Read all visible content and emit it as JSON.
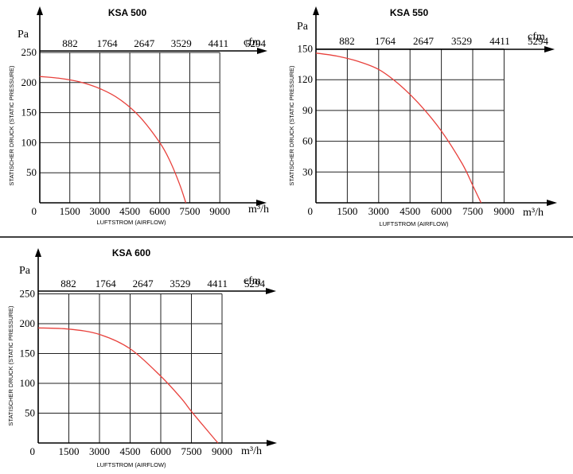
{
  "chart_data": [
    {
      "type": "line",
      "title": "KSA 500",
      "ylabel": "STATISCHER DRUCK (STATIC PRESSURE)",
      "xlabel": "LUFTSTROM (AIRFLOW)",
      "y_unit": "Pa",
      "x_unit": "m³/h",
      "top_unit": "cfm",
      "y_ticks": [
        "250",
        "200",
        "150",
        "100",
        "50"
      ],
      "x_ticks": [
        "0",
        "1500",
        "3000",
        "4500",
        "6000",
        "7500",
        "9000"
      ],
      "top_ticks": [
        "882",
        "1764",
        "2647",
        "3529",
        "4411",
        "5294"
      ],
      "xlim": [
        0,
        9000
      ],
      "ylim": [
        0,
        250
      ],
      "grid": true,
      "series": [
        {
          "x": [
            0,
            1000,
            2000,
            3000,
            4000,
            5000,
            6000,
            6500,
            7000,
            7300
          ],
          "y": [
            210,
            207,
            201,
            190,
            172,
            143,
            100,
            70,
            30,
            0
          ]
        }
      ]
    },
    {
      "type": "line",
      "title": "KSA 550",
      "ylabel": "STATISCHER DRUCK (STATIC PRESSURE)",
      "xlabel": "LUFTSTROM (AIRFLOW)",
      "y_unit": "Pa",
      "x_unit": "m³/h",
      "top_unit": "cfm",
      "y_ticks": [
        "150",
        "120",
        "90",
        "60",
        "30"
      ],
      "x_ticks": [
        "0",
        "1500",
        "3000",
        "4500",
        "6000",
        "7500",
        "9000"
      ],
      "top_ticks": [
        "882",
        "1764",
        "2647",
        "3529",
        "4411",
        "5294"
      ],
      "xlim": [
        0,
        9000
      ],
      "ylim": [
        0,
        150
      ],
      "grid": true,
      "series": [
        {
          "x": [
            0,
            1000,
            2000,
            3000,
            4000,
            5000,
            6000,
            7000,
            7500,
            7900
          ],
          "y": [
            146,
            143,
            138,
            130,
            115,
            95,
            70,
            38,
            17,
            0
          ]
        }
      ]
    },
    {
      "type": "line",
      "title": "KSA 600",
      "ylabel": "STATISCHER DRUCK (STATIC PRESSURE)",
      "xlabel": "LUFTSTROM (AIRFLOW)",
      "y_unit": "Pa",
      "x_unit": "m³/h",
      "top_unit": "cfm",
      "y_ticks": [
        "250",
        "200",
        "150",
        "100",
        "50"
      ],
      "x_ticks": [
        "0",
        "1500",
        "3000",
        "4500",
        "6000",
        "7500",
        "9000"
      ],
      "top_ticks": [
        "882",
        "1764",
        "2647",
        "3529",
        "4411",
        "5294"
      ],
      "xlim": [
        0,
        9000
      ],
      "ylim": [
        0,
        250
      ],
      "grid": true,
      "series": [
        {
          "x": [
            0,
            1500,
            3000,
            4500,
            6000,
            7000,
            7500,
            8500,
            8800
          ],
          "y": [
            193,
            191,
            182,
            158,
            112,
            75,
            53,
            12,
            0
          ]
        }
      ]
    }
  ],
  "colors": {
    "curve": "#e8413c",
    "grid": "#222222",
    "axis": "#000000"
  }
}
